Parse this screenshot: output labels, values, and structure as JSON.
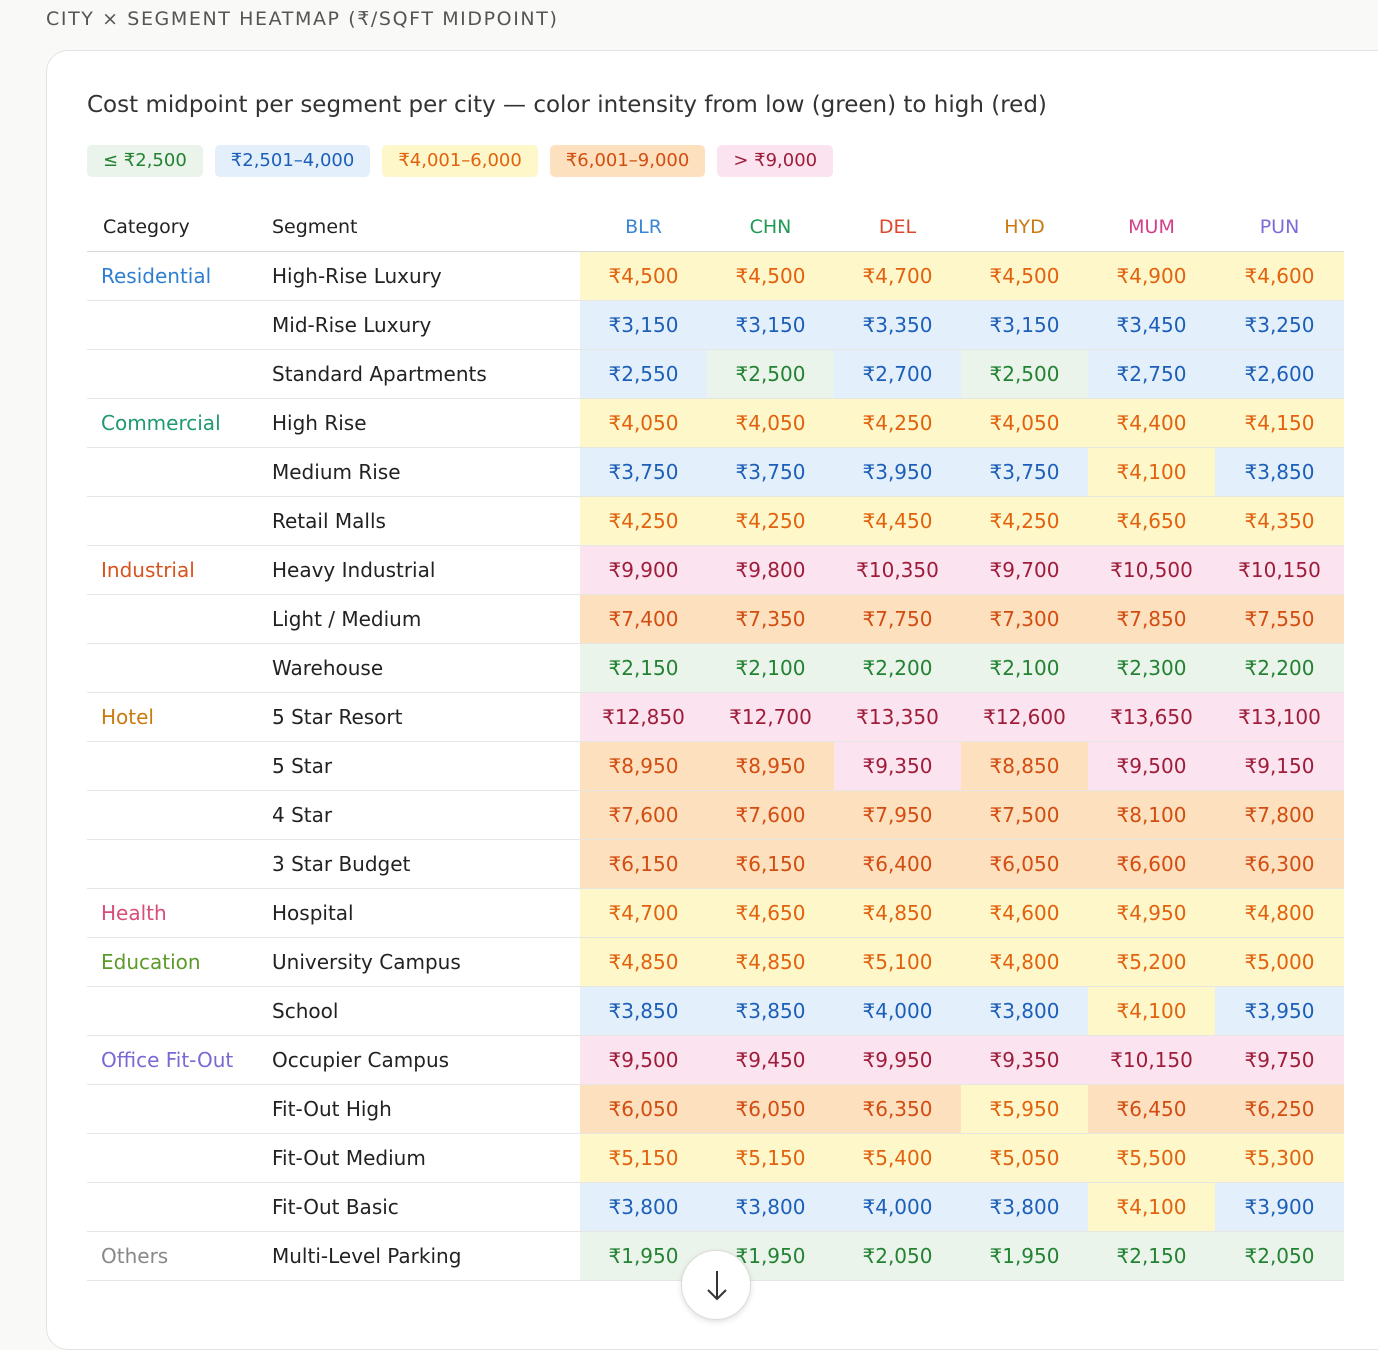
{
  "section_title": "CITY × SEGMENT HEATMAP (₹/SQFT MIDPOINT)",
  "subtitle": "Cost midpoint per segment per city — color intensity from low (green) to high (red)",
  "legend": [
    {
      "label": "≤ ₹2,500",
      "bg": "#eaf4ea",
      "color": "#238233"
    },
    {
      "label": "₹2,501–4,000",
      "bg": "#e3f0fb",
      "color": "#1d5fb8"
    },
    {
      "label": "₹4,001–6,000",
      "bg": "#fdf7c9",
      "color": "#e2620f"
    },
    {
      "label": "₹6,001–9,000",
      "bg": "#fde0bd",
      "color": "#d24d12"
    },
    {
      "label": "> ₹9,000",
      "bg": "#fbe3ef",
      "color": "#9e1d3a"
    }
  ],
  "headers": {
    "category": "Category",
    "segment": "Segment"
  },
  "cities": [
    {
      "code": "BLR",
      "color": "#3a86d6"
    },
    {
      "code": "CHN",
      "color": "#1f9a55"
    },
    {
      "code": "DEL",
      "color": "#e0462d"
    },
    {
      "code": "HYD",
      "color": "#c97a10"
    },
    {
      "code": "MUM",
      "color": "#d2408a"
    },
    {
      "code": "PUN",
      "color": "#7f6bd6"
    }
  ],
  "rows": [
    {
      "category": "Residential",
      "cat_color": "#2f7fd0",
      "segment": "High-Rise Luxury",
      "values": [
        "₹4,500",
        "₹4,500",
        "₹4,700",
        "₹4,500",
        "₹4,900",
        "₹4,600"
      ],
      "tiers": [
        3,
        3,
        3,
        3,
        3,
        3
      ]
    },
    {
      "category": "",
      "cat_color": "",
      "segment": "Mid-Rise Luxury",
      "values": [
        "₹3,150",
        "₹3,150",
        "₹3,350",
        "₹3,150",
        "₹3,450",
        "₹3,250"
      ],
      "tiers": [
        2,
        2,
        2,
        2,
        2,
        2
      ]
    },
    {
      "category": "",
      "cat_color": "",
      "segment": "Standard Apartments",
      "values": [
        "₹2,550",
        "₹2,500",
        "₹2,700",
        "₹2,500",
        "₹2,750",
        "₹2,600"
      ],
      "tiers": [
        2,
        1,
        2,
        1,
        2,
        2
      ]
    },
    {
      "category": "Commercial",
      "cat_color": "#1f9a6e",
      "segment": "High Rise",
      "values": [
        "₹4,050",
        "₹4,050",
        "₹4,250",
        "₹4,050",
        "₹4,400",
        "₹4,150"
      ],
      "tiers": [
        3,
        3,
        3,
        3,
        3,
        3
      ]
    },
    {
      "category": "",
      "cat_color": "",
      "segment": "Medium Rise",
      "values": [
        "₹3,750",
        "₹3,750",
        "₹3,950",
        "₹3,750",
        "₹4,100",
        "₹3,850"
      ],
      "tiers": [
        2,
        2,
        2,
        2,
        3,
        2
      ]
    },
    {
      "category": "",
      "cat_color": "",
      "segment": "Retail Malls",
      "values": [
        "₹4,250",
        "₹4,250",
        "₹4,450",
        "₹4,250",
        "₹4,650",
        "₹4,350"
      ],
      "tiers": [
        3,
        3,
        3,
        3,
        3,
        3
      ]
    },
    {
      "category": "Industrial",
      "cat_color": "#d9531e",
      "segment": "Heavy Industrial",
      "values": [
        "₹9,900",
        "₹9,800",
        "₹10,350",
        "₹9,700",
        "₹10,500",
        "₹10,150"
      ],
      "tiers": [
        5,
        5,
        5,
        5,
        5,
        5
      ]
    },
    {
      "category": "",
      "cat_color": "",
      "segment": "Light / Medium",
      "values": [
        "₹7,400",
        "₹7,350",
        "₹7,750",
        "₹7,300",
        "₹7,850",
        "₹7,550"
      ],
      "tiers": [
        4,
        4,
        4,
        4,
        4,
        4
      ]
    },
    {
      "category": "",
      "cat_color": "",
      "segment": "Warehouse",
      "values": [
        "₹2,150",
        "₹2,100",
        "₹2,200",
        "₹2,100",
        "₹2,300",
        "₹2,200"
      ],
      "tiers": [
        1,
        1,
        1,
        1,
        1,
        1
      ]
    },
    {
      "category": "Hotel",
      "cat_color": "#c97a10",
      "segment": "5 Star Resort",
      "values": [
        "₹12,850",
        "₹12,700",
        "₹13,350",
        "₹12,600",
        "₹13,650",
        "₹13,100"
      ],
      "tiers": [
        5,
        5,
        5,
        5,
        5,
        5
      ]
    },
    {
      "category": "",
      "cat_color": "",
      "segment": "5 Star",
      "values": [
        "₹8,950",
        "₹8,950",
        "₹9,350",
        "₹8,850",
        "₹9,500",
        "₹9,150"
      ],
      "tiers": [
        4,
        4,
        5,
        4,
        5,
        5
      ]
    },
    {
      "category": "",
      "cat_color": "",
      "segment": "4 Star",
      "values": [
        "₹7,600",
        "₹7,600",
        "₹7,950",
        "₹7,500",
        "₹8,100",
        "₹7,800"
      ],
      "tiers": [
        4,
        4,
        4,
        4,
        4,
        4
      ]
    },
    {
      "category": "",
      "cat_color": "",
      "segment": "3 Star Budget",
      "values": [
        "₹6,150",
        "₹6,150",
        "₹6,400",
        "₹6,050",
        "₹6,600",
        "₹6,300"
      ],
      "tiers": [
        4,
        4,
        4,
        4,
        4,
        4
      ]
    },
    {
      "category": "Health",
      "cat_color": "#d94d76",
      "segment": "Hospital",
      "values": [
        "₹4,700",
        "₹4,650",
        "₹4,850",
        "₹4,600",
        "₹4,950",
        "₹4,800"
      ],
      "tiers": [
        3,
        3,
        3,
        3,
        3,
        3
      ]
    },
    {
      "category": "Education",
      "cat_color": "#5c9a2a",
      "segment": "University Campus",
      "values": [
        "₹4,850",
        "₹4,850",
        "₹5,100",
        "₹4,800",
        "₹5,200",
        "₹5,000"
      ],
      "tiers": [
        3,
        3,
        3,
        3,
        3,
        3
      ]
    },
    {
      "category": "",
      "cat_color": "",
      "segment": "School",
      "values": [
        "₹3,850",
        "₹3,850",
        "₹4,000",
        "₹3,800",
        "₹4,100",
        "₹3,950"
      ],
      "tiers": [
        2,
        2,
        2,
        2,
        3,
        2
      ]
    },
    {
      "category": "Office Fit-Out",
      "cat_color": "#7a68d4",
      "segment": "Occupier Campus",
      "values": [
        "₹9,500",
        "₹9,450",
        "₹9,950",
        "₹9,350",
        "₹10,150",
        "₹9,750"
      ],
      "tiers": [
        5,
        5,
        5,
        5,
        5,
        5
      ]
    },
    {
      "category": "",
      "cat_color": "",
      "segment": "Fit-Out High",
      "values": [
        "₹6,050",
        "₹6,050",
        "₹6,350",
        "₹5,950",
        "₹6,450",
        "₹6,250"
      ],
      "tiers": [
        4,
        4,
        4,
        3,
        4,
        4
      ]
    },
    {
      "category": "",
      "cat_color": "",
      "segment": "Fit-Out Medium",
      "values": [
        "₹5,150",
        "₹5,150",
        "₹5,400",
        "₹5,050",
        "₹5,500",
        "₹5,300"
      ],
      "tiers": [
        3,
        3,
        3,
        3,
        3,
        3
      ]
    },
    {
      "category": "",
      "cat_color": "",
      "segment": "Fit-Out Basic",
      "values": [
        "₹3,800",
        "₹3,800",
        "₹4,000",
        "₹3,800",
        "₹4,100",
        "₹3,900"
      ],
      "tiers": [
        2,
        2,
        2,
        2,
        3,
        2
      ]
    },
    {
      "category": "Others",
      "cat_color": "#888888",
      "segment": "Multi-Level Parking",
      "values": [
        "₹1,950",
        "₹1,950",
        "₹2,050",
        "₹1,950",
        "₹2,150",
        "₹2,050"
      ],
      "tiers": [
        1,
        1,
        1,
        1,
        1,
        1
      ]
    }
  ],
  "scroll_button_icon": "arrow-down-icon"
}
